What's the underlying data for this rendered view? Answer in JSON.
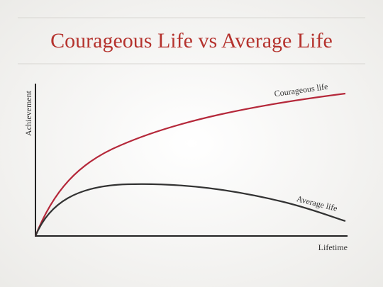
{
  "header": {
    "title": "Courageous Life vs Average Life"
  },
  "axes": {
    "y_label": "Achievement",
    "x_label": "Lifetime"
  },
  "curves": [
    {
      "label": "Courageous life"
    },
    {
      "label": "Average life"
    }
  ]
}
